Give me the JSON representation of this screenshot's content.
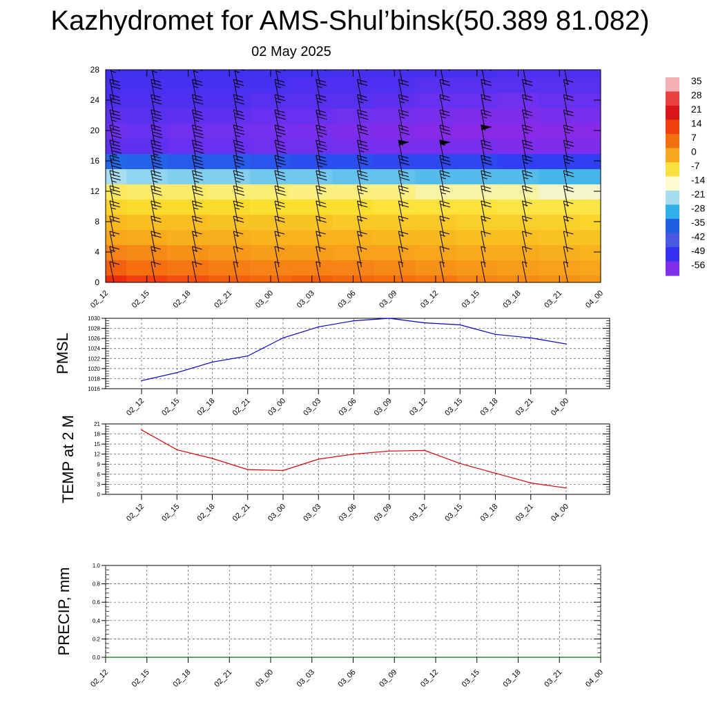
{
  "title": "Kazhydromet for AMS-Shul’binsk(50.389 81.082)",
  "subtitle": "02 May 2025",
  "time_labels": [
    "02_12",
    "02_15",
    "02_18",
    "02_21",
    "03_00",
    "03_03",
    "03_06",
    "03_09",
    "03_12",
    "03_15",
    "03_18",
    "03_21",
    "04_00"
  ],
  "colors": {
    "pmsl_line": "#0000cc",
    "temp_line": "#dd0000",
    "precip_line": "#006600",
    "barb": "#000000"
  },
  "colorbar": {
    "labels": [
      "35",
      "28",
      "21",
      "14",
      "7",
      "0",
      "-7",
      "-14",
      "-21",
      "-28",
      "-35",
      "-42",
      "-49",
      "-56"
    ],
    "colors": [
      "#f2b0b0",
      "#e84040",
      "#d81818",
      "#f04010",
      "#f07010",
      "#f8a820",
      "#fce040",
      "#fcfcd0",
      "#a8dcf0",
      "#30b0e8",
      "#2060e0",
      "#4858e0",
      "#3830f0",
      "#8030e8"
    ]
  },
  "chart_data": [
    {
      "type": "heatmap",
      "name": "upper-air temperature and wind cross-section",
      "x": [
        "02_12",
        "02_15",
        "02_18",
        "02_21",
        "03_00",
        "03_03",
        "03_06",
        "03_09",
        "03_12",
        "03_15",
        "03_18",
        "03_21",
        "04_00"
      ],
      "ylim": [
        0,
        28
      ],
      "yticks": [
        0,
        4,
        8,
        12,
        16,
        20,
        24,
        28
      ],
      "layers_y": [
        0,
        2,
        4,
        6,
        8,
        10,
        12,
        14,
        16,
        18,
        20,
        22,
        24,
        26,
        28
      ],
      "temperature": [
        [
          22,
          15,
          10,
          4,
          0,
          -5,
          -11,
          -20,
          -36,
          -54,
          -56,
          -54,
          -52,
          -51,
          -50
        ],
        [
          19,
          13,
          9,
          3,
          -1,
          -6,
          -12,
          -21,
          -37,
          -54,
          -55,
          -53,
          -52,
          -51,
          -50
        ],
        [
          17,
          12,
          8,
          2,
          -1,
          -6,
          -12,
          -22,
          -38,
          -55,
          -56,
          -54,
          -52,
          -51,
          -50
        ],
        [
          15,
          11,
          7,
          2,
          -2,
          -6,
          -13,
          -22,
          -38,
          -55,
          -56,
          -54,
          -52,
          -51,
          -50
        ],
        [
          14,
          10,
          6,
          1,
          -2,
          -7,
          -13,
          -23,
          -39,
          -56,
          -57,
          -55,
          -53,
          -51,
          -50
        ],
        [
          15,
          10,
          6,
          1,
          -2,
          -7,
          -14,
          -23,
          -40,
          -56,
          -58,
          -55,
          -53,
          -52,
          -50
        ],
        [
          14,
          10,
          5,
          1,
          -3,
          -7,
          -14,
          -24,
          -40,
          -57,
          -59,
          -56,
          -53,
          -52,
          -51
        ],
        [
          13,
          9,
          5,
          0,
          -3,
          -8,
          -14,
          -24,
          -41,
          -58,
          -60,
          -57,
          -54,
          -52,
          -51
        ],
        [
          12,
          8,
          4,
          0,
          -3,
          -8,
          -15,
          -25,
          -41,
          -58,
          -61,
          -58,
          -55,
          -53,
          -51
        ],
        [
          10,
          7,
          3,
          -1,
          -4,
          -8,
          -15,
          -25,
          -41,
          -58,
          -62,
          -59,
          -55,
          -53,
          -51
        ],
        [
          9,
          6,
          3,
          -1,
          -4,
          -9,
          -15,
          -25,
          -42,
          -59,
          -62,
          -59,
          -56,
          -53,
          -52
        ],
        [
          8,
          5,
          2,
          -2,
          -4,
          -9,
          -16,
          -26,
          -42,
          -59,
          -61,
          -58,
          -55,
          -53,
          -52
        ],
        [
          7,
          4,
          1,
          -2,
          -5,
          -9,
          -16,
          -26,
          -42,
          -59,
          -61,
          -58,
          -55,
          -53,
          -52
        ]
      ],
      "wind_barbs_speed_kt": [
        [
          10,
          15,
          15,
          20,
          25,
          30,
          35,
          40,
          45,
          40,
          35,
          30,
          30,
          25,
          25
        ],
        [
          10,
          15,
          20,
          20,
          25,
          30,
          35,
          40,
          45,
          40,
          35,
          30,
          30,
          25,
          25
        ],
        [
          10,
          15,
          15,
          20,
          25,
          30,
          35,
          40,
          40,
          40,
          35,
          30,
          25,
          25,
          25
        ],
        [
          5,
          10,
          15,
          20,
          25,
          30,
          35,
          35,
          40,
          35,
          30,
          30,
          25,
          25,
          20
        ],
        [
          5,
          10,
          15,
          20,
          25,
          30,
          30,
          35,
          40,
          35,
          30,
          25,
          25,
          25,
          20
        ],
        [
          5,
          10,
          15,
          20,
          20,
          25,
          30,
          35,
          35,
          35,
          30,
          25,
          25,
          20,
          20
        ],
        [
          5,
          10,
          15,
          15,
          20,
          25,
          30,
          30,
          35,
          30,
          30,
          25,
          20,
          20,
          20
        ],
        [
          5,
          10,
          15,
          15,
          20,
          25,
          30,
          30,
          50,
          30,
          25,
          25,
          20,
          20,
          20
        ],
        [
          5,
          10,
          15,
          15,
          20,
          25,
          25,
          30,
          55,
          30,
          25,
          20,
          20,
          20,
          20
        ],
        [
          5,
          5,
          10,
          15,
          20,
          20,
          25,
          30,
          30,
          50,
          25,
          20,
          20,
          20,
          15
        ],
        [
          5,
          10,
          10,
          15,
          15,
          20,
          25,
          25,
          30,
          25,
          25,
          20,
          20,
          15,
          15
        ],
        [
          5,
          10,
          10,
          15,
          15,
          20,
          20,
          25,
          25,
          25,
          20,
          20,
          15,
          15,
          15
        ],
        [
          5,
          5,
          10,
          10,
          15,
          15,
          20,
          25,
          25,
          20,
          20,
          15,
          15,
          15,
          15
        ]
      ]
    },
    {
      "type": "line",
      "ylabel": "PMSL",
      "x": [
        "02_12",
        "02_15",
        "02_18",
        "02_21",
        "03_00",
        "03_03",
        "03_06",
        "03_09",
        "03_12",
        "03_15",
        "03_18",
        "03_21",
        "04_00"
      ],
      "values": [
        1017.6,
        1019.2,
        1021.3,
        1022.5,
        1026.1,
        1028.3,
        1029.5,
        1030.0,
        1029.1,
        1028.7,
        1026.8,
        1026.1,
        1024.9
      ],
      "ylim": [
        1016,
        1030
      ],
      "yticks": [
        1016,
        1018,
        1020,
        1022,
        1024,
        1026,
        1028,
        1030
      ],
      "grid": true
    },
    {
      "type": "line",
      "ylabel": "TEMP at 2 M",
      "x": [
        "02_12",
        "02_15",
        "02_18",
        "02_21",
        "03_00",
        "03_03",
        "03_06",
        "03_09",
        "03_12",
        "03_15",
        "03_18",
        "03_21",
        "04_00"
      ],
      "values": [
        19.2,
        13.3,
        10.7,
        7.4,
        7.1,
        10.5,
        12.0,
        12.9,
        13.1,
        9.2,
        6.3,
        3.4,
        1.9
      ],
      "ylim": [
        0,
        21
      ],
      "yticks": [
        0,
        3,
        6,
        9,
        12,
        15,
        18,
        21
      ],
      "grid": true
    },
    {
      "type": "line",
      "ylabel": "PRECIP, mm",
      "x": [
        "02_12",
        "02_15",
        "02_18",
        "02_21",
        "03_00",
        "03_03",
        "03_06",
        "03_09",
        "03_12",
        "03_15",
        "03_18",
        "03_21",
        "04_00"
      ],
      "values": [
        0,
        0,
        0,
        0,
        0,
        0,
        0,
        0,
        0,
        0,
        0,
        0,
        0
      ],
      "ylim": [
        0,
        1.0
      ],
      "yticks": [
        "0.0",
        "0.2",
        "0.4",
        "0.6",
        "0.8",
        "1.0"
      ],
      "grid": true
    }
  ]
}
